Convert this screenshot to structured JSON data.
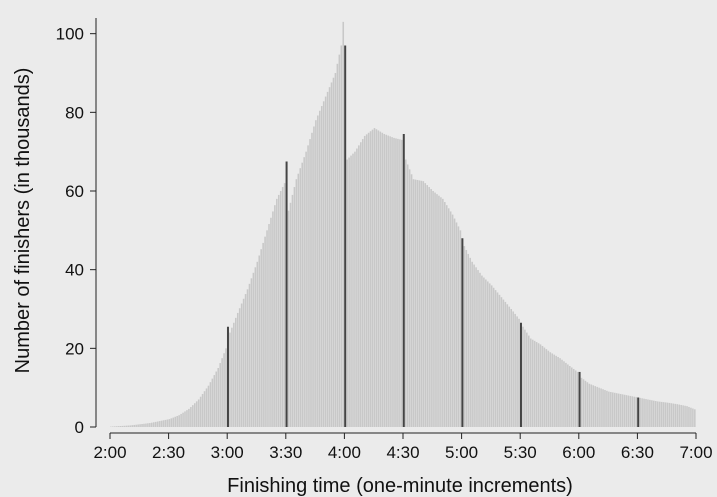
{
  "chart_data": {
    "type": "bar",
    "title": "",
    "xlabel": "Finishing time (one-minute increments)",
    "ylabel": "Number of finishers (in thousands)",
    "x_unit": "minutes of finishing time",
    "xlim": [
      120,
      420
    ],
    "ylim": [
      0,
      105
    ],
    "x_ticks": [
      120,
      150,
      180,
      210,
      240,
      270,
      300,
      330,
      360,
      390,
      420
    ],
    "x_tick_labels": [
      "2:00",
      "2:30",
      "3:00",
      "3:30",
      "4:00",
      "4:30",
      "5:00",
      "5:30",
      "6:00",
      "6:30",
      "7:00"
    ],
    "y_ticks": [
      0,
      20,
      40,
      60,
      80,
      100
    ],
    "y_tick_labels": [
      "0",
      "20",
      "40",
      "60",
      "80",
      "100"
    ],
    "grid": false,
    "colors": {
      "bars": "#c8c8c8",
      "highlight_bars": "#444444",
      "background": "#ebebeb"
    },
    "highlighted_values": [
      {
        "minute": 180,
        "value": 25.5
      },
      {
        "minute": 210,
        "value": 67.5
      },
      {
        "minute": 240,
        "value": 97.0
      },
      {
        "minute": 270,
        "value": 74.5
      },
      {
        "minute": 300,
        "value": 48.0
      },
      {
        "minute": 330,
        "value": 26.5
      },
      {
        "minute": 360,
        "value": 14.0
      },
      {
        "minute": 390,
        "value": 7.5
      }
    ],
    "profile": [
      [
        120,
        0.1
      ],
      [
        130,
        0.4
      ],
      [
        140,
        1.0
      ],
      [
        150,
        2.0
      ],
      [
        155,
        3.0
      ],
      [
        160,
        4.6
      ],
      [
        165,
        7.0
      ],
      [
        170,
        10.5
      ],
      [
        175,
        15.0
      ],
      [
        179,
        20.0
      ],
      [
        181,
        24.0
      ],
      [
        185,
        29.0
      ],
      [
        190,
        35.0
      ],
      [
        195,
        42.0
      ],
      [
        200,
        50.0
      ],
      [
        205,
        58.0
      ],
      [
        209,
        62.0
      ],
      [
        211,
        55.0
      ],
      [
        215,
        63.0
      ],
      [
        220,
        70.0
      ],
      [
        225,
        78.0
      ],
      [
        230,
        84.0
      ],
      [
        235,
        90.0
      ],
      [
        238,
        97.0
      ],
      [
        239,
        103.0
      ],
      [
        241,
        68.0
      ],
      [
        245,
        70.0
      ],
      [
        250,
        74.0
      ],
      [
        255,
        76.0
      ],
      [
        260,
        74.5
      ],
      [
        265,
        73.5
      ],
      [
        269,
        73.0
      ],
      [
        271,
        68.0
      ],
      [
        275,
        63.0
      ],
      [
        280,
        62.5
      ],
      [
        285,
        60.0
      ],
      [
        290,
        58.0
      ],
      [
        295,
        54.0
      ],
      [
        299,
        50.0
      ],
      [
        301,
        46.0
      ],
      [
        305,
        42.0
      ],
      [
        310,
        38.5
      ],
      [
        315,
        36.0
      ],
      [
        320,
        33.0
      ],
      [
        325,
        30.0
      ],
      [
        329,
        27.5
      ],
      [
        331,
        25.5
      ],
      [
        335,
        22.5
      ],
      [
        340,
        21.0
      ],
      [
        345,
        19.0
      ],
      [
        350,
        17.5
      ],
      [
        355,
        15.5
      ],
      [
        359,
        14.0
      ],
      [
        361,
        12.5
      ],
      [
        365,
        11.0
      ],
      [
        370,
        10.0
      ],
      [
        375,
        9.0
      ],
      [
        380,
        8.5
      ],
      [
        385,
        8.0
      ],
      [
        390,
        7.5
      ],
      [
        395,
        7.0
      ],
      [
        400,
        6.5
      ],
      [
        405,
        6.2
      ],
      [
        410,
        5.8
      ],
      [
        415,
        5.3
      ],
      [
        419,
        4.5
      ]
    ]
  }
}
